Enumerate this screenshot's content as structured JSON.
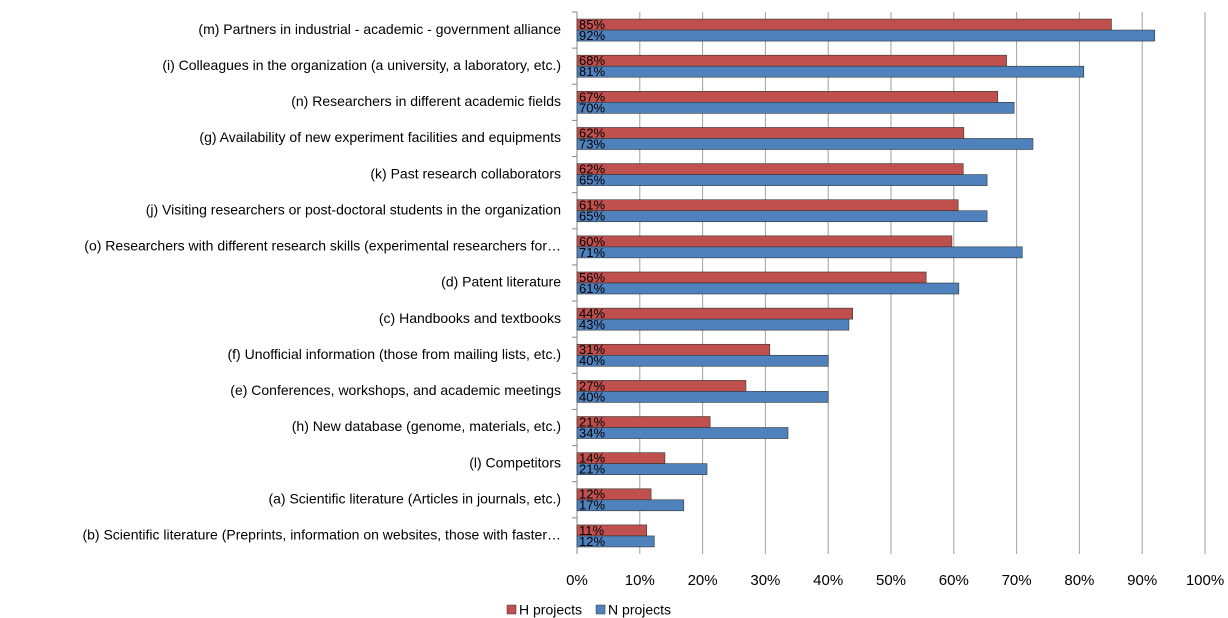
{
  "chart_data": {
    "type": "barh",
    "categories": [
      "(m) Partners in industrial - academic - government alliance",
      "(i) Colleagues in the organization (a university, a laboratory, etc.)",
      "(n) Researchers in different academic fields",
      "(g) Availability of new experiment facilities and equipments",
      "(k) Past research collaborators",
      "(j) Visiting researchers or post-doctoral students in the organization",
      "(o) Researchers with different research skills (experimental researchers for…",
      "(d) Patent literature",
      "(c) Handbooks and textbooks",
      "(f) Unofficial information (those from mailing lists, etc.)",
      "(e) Conferences, workshops, and academic meetings",
      "(h) New database (genome, materials, etc.)",
      "(l) Competitors",
      "(a) Scientific literature (Articles in journals, etc.)",
      "(b) Scientific literature (Preprints, information on websites, those with faster…"
    ],
    "series": [
      {
        "name": "H projects",
        "color": "#c0504d",
        "values": [
          85.1,
          68.4,
          67.0,
          61.6,
          61.5,
          60.7,
          59.7,
          55.6,
          43.9,
          30.7,
          26.9,
          21.2,
          14.0,
          11.8,
          11.1
        ],
        "value_labels": [
          "85%",
          "68%",
          "67%",
          "62%",
          "62%",
          "61%",
          "60%",
          "56%",
          "44%",
          "31%",
          "27%",
          "21%",
          "14%",
          "12%",
          "11%"
        ]
      },
      {
        "name": "N projects",
        "color": "#4f81bd",
        "values": [
          92.0,
          80.7,
          69.6,
          72.6,
          65.3,
          65.3,
          70.9,
          60.8,
          43.3,
          40.0,
          40.0,
          33.6,
          20.7,
          17.0,
          12.3
        ],
        "value_labels": [
          "92%",
          "81%",
          "70%",
          "73%",
          "65%",
          "65%",
          "71%",
          "61%",
          "43%",
          "40%",
          "40%",
          "34%",
          "21%",
          "17%",
          "12%"
        ]
      }
    ],
    "xlim": [
      0,
      100
    ],
    "xticks": [
      {
        "value": 0,
        "label": "0%"
      },
      {
        "value": 10,
        "label": "10%"
      },
      {
        "value": 20,
        "label": "20%"
      },
      {
        "value": 30,
        "label": "30%"
      },
      {
        "value": 40,
        "label": "40%"
      },
      {
        "value": 50,
        "label": "50%"
      },
      {
        "value": 60,
        "label": "60%"
      },
      {
        "value": 70,
        "label": "70%"
      },
      {
        "value": 80,
        "label": "80%"
      },
      {
        "value": 90,
        "label": "90%"
      },
      {
        "value": 100,
        "label": "100%"
      }
    ],
    "grid": true,
    "legend": "bottom"
  }
}
